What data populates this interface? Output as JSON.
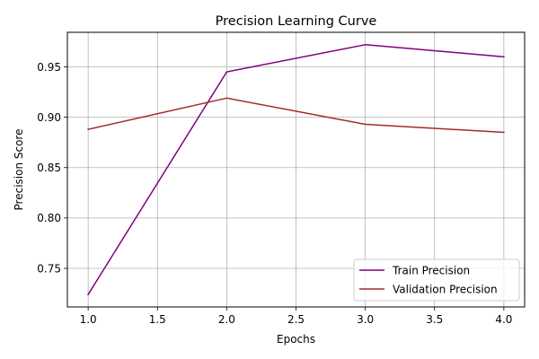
{
  "chart_data": {
    "type": "line",
    "title": "Precision Learning Curve",
    "xlabel": "Epochs",
    "ylabel": "Precision Score",
    "x": [
      1,
      2,
      3,
      4
    ],
    "series": [
      {
        "name": "Train Precision",
        "values": [
          0.724,
          0.945,
          0.972,
          0.96
        ],
        "color": "#800080"
      },
      {
        "name": "Validation Precision",
        "values": [
          0.888,
          0.919,
          0.893,
          0.885
        ],
        "color": "#a52a2a"
      }
    ],
    "xlim": [
      0.85,
      4.15
    ],
    "ylim": [
      0.7117,
      0.9843
    ],
    "xticks": [
      "1.0",
      "1.5",
      "2.0",
      "2.5",
      "3.0",
      "3.5",
      "4.0"
    ],
    "yticks": [
      "0.75",
      "0.80",
      "0.85",
      "0.90",
      "0.95"
    ],
    "grid": true,
    "legend_position": "lower-right"
  }
}
